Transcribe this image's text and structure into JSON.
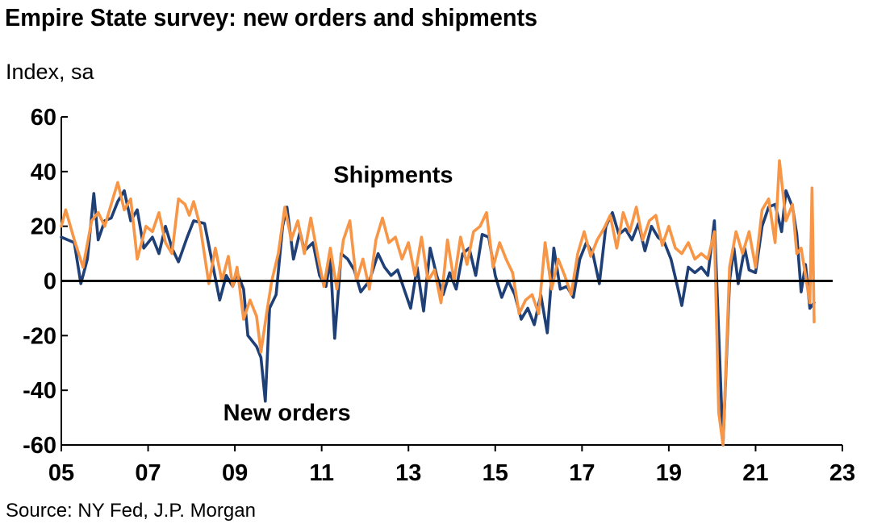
{
  "header": {
    "title": "Empire State survey: new orders and shipments",
    "subtitle": "Index, sa"
  },
  "footer": {
    "source": "Source: NY Fed, J.P. Morgan"
  },
  "colors": {
    "new_orders": "#1F3F77",
    "shipments": "#F79646",
    "axis": "#000000"
  },
  "chart_data": {
    "type": "line",
    "title": "Empire State survey: new orders and shipments",
    "ylabel": "Index, sa",
    "ylim": [
      -60,
      60
    ],
    "xlim": [
      2005,
      2023
    ],
    "yticks": [
      60,
      40,
      20,
      0,
      -20,
      -40,
      -60
    ],
    "ytick_labels": [
      "60",
      "40",
      "20",
      "0",
      "-20",
      "-40",
      "-60"
    ],
    "xticks": [
      2005,
      2007,
      2009,
      2011,
      2013,
      2015,
      2017,
      2019,
      2021,
      2023
    ],
    "xtick_labels": [
      "05",
      "07",
      "09",
      "11",
      "13",
      "15",
      "17",
      "19",
      "21",
      "23"
    ],
    "grid": false,
    "zero_line": true,
    "annotations": [
      {
        "text": "Shipments",
        "series": "shipments"
      },
      {
        "text": "New orders",
        "series": "new_orders"
      }
    ],
    "series": [
      {
        "name": "New orders",
        "key": "new_orders",
        "points": [
          [
            2005.0,
            16
          ],
          [
            2005.3,
            14
          ],
          [
            2005.45,
            -1
          ],
          [
            2005.6,
            8
          ],
          [
            2005.75,
            32
          ],
          [
            2005.85,
            15
          ],
          [
            2006.0,
            22
          ],
          [
            2006.15,
            23
          ],
          [
            2006.3,
            29
          ],
          [
            2006.45,
            33
          ],
          [
            2006.6,
            22
          ],
          [
            2006.75,
            26
          ],
          [
            2006.9,
            12
          ],
          [
            2007.1,
            16
          ],
          [
            2007.25,
            10
          ],
          [
            2007.4,
            20
          ],
          [
            2007.55,
            12
          ],
          [
            2007.7,
            7
          ],
          [
            2007.9,
            16
          ],
          [
            2008.05,
            22
          ],
          [
            2008.3,
            21
          ],
          [
            2008.5,
            5
          ],
          [
            2008.65,
            -7
          ],
          [
            2008.8,
            2
          ],
          [
            2008.95,
            -2
          ],
          [
            2009.05,
            3
          ],
          [
            2009.2,
            -3
          ],
          [
            2009.3,
            -20
          ],
          [
            2009.5,
            -24
          ],
          [
            2009.6,
            -28
          ],
          [
            2009.7,
            -44
          ],
          [
            2009.8,
            -10
          ],
          [
            2009.95,
            -5
          ],
          [
            2010.1,
            20
          ],
          [
            2010.2,
            27
          ],
          [
            2010.35,
            8
          ],
          [
            2010.5,
            18
          ],
          [
            2010.6,
            11
          ],
          [
            2010.8,
            14
          ],
          [
            2010.95,
            2
          ],
          [
            2011.1,
            -2
          ],
          [
            2011.2,
            8
          ],
          [
            2011.3,
            -21
          ],
          [
            2011.45,
            10
          ],
          [
            2011.6,
            8
          ],
          [
            2011.75,
            4
          ],
          [
            2011.9,
            -4
          ],
          [
            2012.1,
            0
          ],
          [
            2012.3,
            10
          ],
          [
            2012.45,
            5
          ],
          [
            2012.6,
            2
          ],
          [
            2012.75,
            4
          ],
          [
            2012.9,
            -3
          ],
          [
            2013.05,
            -10
          ],
          [
            2013.2,
            5
          ],
          [
            2013.35,
            -11
          ],
          [
            2013.5,
            12
          ],
          [
            2013.65,
            2
          ],
          [
            2013.8,
            -5
          ],
          [
            2013.95,
            3
          ],
          [
            2014.1,
            -3
          ],
          [
            2014.25,
            10
          ],
          [
            2014.4,
            12
          ],
          [
            2014.55,
            2
          ],
          [
            2014.7,
            17
          ],
          [
            2014.85,
            16
          ],
          [
            2015.0,
            2
          ],
          [
            2015.15,
            -6
          ],
          [
            2015.3,
            0
          ],
          [
            2015.45,
            -5
          ],
          [
            2015.6,
            -14
          ],
          [
            2015.75,
            -10
          ],
          [
            2015.9,
            -16
          ],
          [
            2016.05,
            -5
          ],
          [
            2016.2,
            -19
          ],
          [
            2016.35,
            12
          ],
          [
            2016.5,
            -3
          ],
          [
            2016.65,
            -2
          ],
          [
            2016.8,
            -6
          ],
          [
            2016.95,
            8
          ],
          [
            2017.1,
            14
          ],
          [
            2017.25,
            10
          ],
          [
            2017.4,
            -1
          ],
          [
            2017.55,
            20
          ],
          [
            2017.7,
            25
          ],
          [
            2017.85,
            17
          ],
          [
            2018.0,
            19
          ],
          [
            2018.15,
            15
          ],
          [
            2018.3,
            21
          ],
          [
            2018.45,
            11
          ],
          [
            2018.6,
            20
          ],
          [
            2018.75,
            16
          ],
          [
            2018.9,
            14
          ],
          [
            2019.05,
            8
          ],
          [
            2019.2,
            -2
          ],
          [
            2019.3,
            -9
          ],
          [
            2019.45,
            5
          ],
          [
            2019.6,
            3
          ],
          [
            2019.75,
            5
          ],
          [
            2019.9,
            2
          ],
          [
            2020.05,
            22
          ],
          [
            2020.25,
            -60
          ],
          [
            2020.4,
            0
          ],
          [
            2020.5,
            12
          ],
          [
            2020.6,
            -1
          ],
          [
            2020.75,
            12
          ],
          [
            2020.85,
            4
          ],
          [
            2021.0,
            3
          ],
          [
            2021.15,
            20
          ],
          [
            2021.3,
            27
          ],
          [
            2021.45,
            28
          ],
          [
            2021.6,
            18
          ],
          [
            2021.7,
            33
          ],
          [
            2021.85,
            27
          ],
          [
            2021.95,
            17
          ],
          [
            2022.05,
            -4
          ],
          [
            2022.15,
            6
          ],
          [
            2022.25,
            -10
          ],
          [
            2022.35,
            -8
          ]
        ]
      },
      {
        "name": "Shipments",
        "key": "shipments",
        "points": [
          [
            2005.0,
            20
          ],
          [
            2005.1,
            26
          ],
          [
            2005.3,
            15
          ],
          [
            2005.5,
            5
          ],
          [
            2005.7,
            22
          ],
          [
            2005.85,
            25
          ],
          [
            2006.0,
            20
          ],
          [
            2006.15,
            28
          ],
          [
            2006.3,
            36
          ],
          [
            2006.45,
            26
          ],
          [
            2006.6,
            30
          ],
          [
            2006.75,
            8
          ],
          [
            2006.95,
            20
          ],
          [
            2007.1,
            18
          ],
          [
            2007.25,
            25
          ],
          [
            2007.4,
            14
          ],
          [
            2007.55,
            10
          ],
          [
            2007.7,
            30
          ],
          [
            2007.85,
            28
          ],
          [
            2007.95,
            24
          ],
          [
            2008.05,
            29
          ],
          [
            2008.2,
            20
          ],
          [
            2008.4,
            -1
          ],
          [
            2008.55,
            12
          ],
          [
            2008.7,
            0
          ],
          [
            2008.85,
            9
          ],
          [
            2008.95,
            -2
          ],
          [
            2009.05,
            5
          ],
          [
            2009.2,
            -14
          ],
          [
            2009.35,
            -7
          ],
          [
            2009.5,
            -13
          ],
          [
            2009.6,
            -26
          ],
          [
            2009.75,
            -10
          ],
          [
            2009.85,
            0
          ],
          [
            2010.0,
            10
          ],
          [
            2010.15,
            27
          ],
          [
            2010.3,
            15
          ],
          [
            2010.45,
            22
          ],
          [
            2010.6,
            10
          ],
          [
            2010.75,
            23
          ],
          [
            2010.9,
            10
          ],
          [
            2011.05,
            -2
          ],
          [
            2011.2,
            12
          ],
          [
            2011.35,
            -3
          ],
          [
            2011.5,
            15
          ],
          [
            2011.65,
            22
          ],
          [
            2011.8,
            0
          ],
          [
            2011.95,
            8
          ],
          [
            2012.1,
            -3
          ],
          [
            2012.25,
            15
          ],
          [
            2012.4,
            23
          ],
          [
            2012.55,
            14
          ],
          [
            2012.7,
            16
          ],
          [
            2012.85,
            8
          ],
          [
            2013.0,
            14
          ],
          [
            2013.15,
            2
          ],
          [
            2013.3,
            16
          ],
          [
            2013.45,
            0
          ],
          [
            2013.6,
            4
          ],
          [
            2013.75,
            -8
          ],
          [
            2013.9,
            15
          ],
          [
            2014.05,
            0
          ],
          [
            2014.2,
            16
          ],
          [
            2014.35,
            6
          ],
          [
            2014.5,
            18
          ],
          [
            2014.65,
            20
          ],
          [
            2014.8,
            25
          ],
          [
            2014.95,
            5
          ],
          [
            2015.1,
            14
          ],
          [
            2015.25,
            8
          ],
          [
            2015.4,
            3
          ],
          [
            2015.55,
            -12
          ],
          [
            2015.7,
            -7
          ],
          [
            2015.85,
            -5
          ],
          [
            2016.0,
            -12
          ],
          [
            2016.15,
            14
          ],
          [
            2016.3,
            -3
          ],
          [
            2016.45,
            8
          ],
          [
            2016.6,
            2
          ],
          [
            2016.75,
            -5
          ],
          [
            2016.9,
            10
          ],
          [
            2017.05,
            18
          ],
          [
            2017.2,
            9
          ],
          [
            2017.35,
            15
          ],
          [
            2017.5,
            19
          ],
          [
            2017.65,
            24
          ],
          [
            2017.8,
            12
          ],
          [
            2017.95,
            25
          ],
          [
            2018.1,
            18
          ],
          [
            2018.25,
            27
          ],
          [
            2018.4,
            15
          ],
          [
            2018.55,
            22
          ],
          [
            2018.7,
            24
          ],
          [
            2018.85,
            13
          ],
          [
            2019.0,
            20
          ],
          [
            2019.15,
            12
          ],
          [
            2019.3,
            10
          ],
          [
            2019.45,
            14
          ],
          [
            2019.6,
            8
          ],
          [
            2019.75,
            10
          ],
          [
            2019.9,
            8
          ],
          [
            2020.05,
            18
          ],
          [
            2020.15,
            -48
          ],
          [
            2020.25,
            -60
          ],
          [
            2020.4,
            5
          ],
          [
            2020.55,
            18
          ],
          [
            2020.7,
            10
          ],
          [
            2020.85,
            18
          ],
          [
            2021.0,
            5
          ],
          [
            2021.15,
            26
          ],
          [
            2021.3,
            30
          ],
          [
            2021.45,
            14
          ],
          [
            2021.55,
            44
          ],
          [
            2021.7,
            22
          ],
          [
            2021.85,
            28
          ],
          [
            2021.95,
            10
          ],
          [
            2022.05,
            12
          ],
          [
            2022.15,
            2
          ],
          [
            2022.25,
            -8
          ],
          [
            2022.3,
            34
          ],
          [
            2022.35,
            -15
          ]
        ]
      }
    ]
  }
}
